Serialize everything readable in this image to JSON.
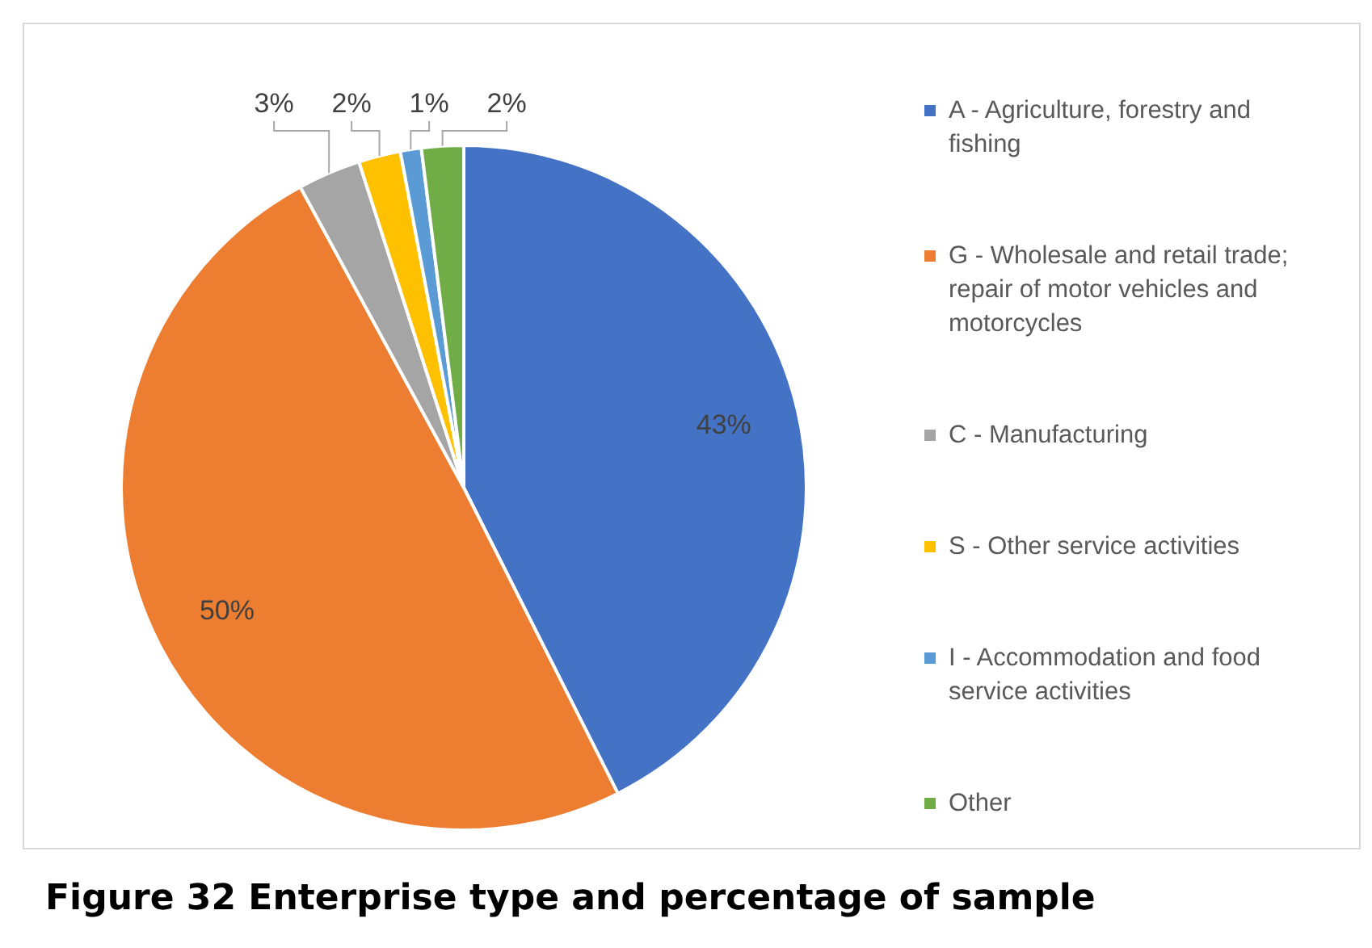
{
  "chart_data": {
    "type": "pie",
    "title": "Figure 32 Enterprise type and percentage of sample",
    "categories": [
      "A - Agriculture, forestry and fishing",
      "G - Wholesale and retail trade; repair of motor vehicles and motorcycles",
      "C - Manufacturing",
      "S - Other service activities",
      "I - Accommodation and food service activities",
      "Other"
    ],
    "values": [
      43,
      50,
      3,
      2,
      1,
      2
    ],
    "colors": [
      "#4472c4",
      "#ed7d31",
      "#a5a5a5",
      "#ffc000",
      "#5b9bd5",
      "#70ad47"
    ],
    "value_labels": [
      "43%",
      "50%",
      "3%",
      "2%",
      "1%",
      "2%"
    ],
    "legend": "right"
  }
}
